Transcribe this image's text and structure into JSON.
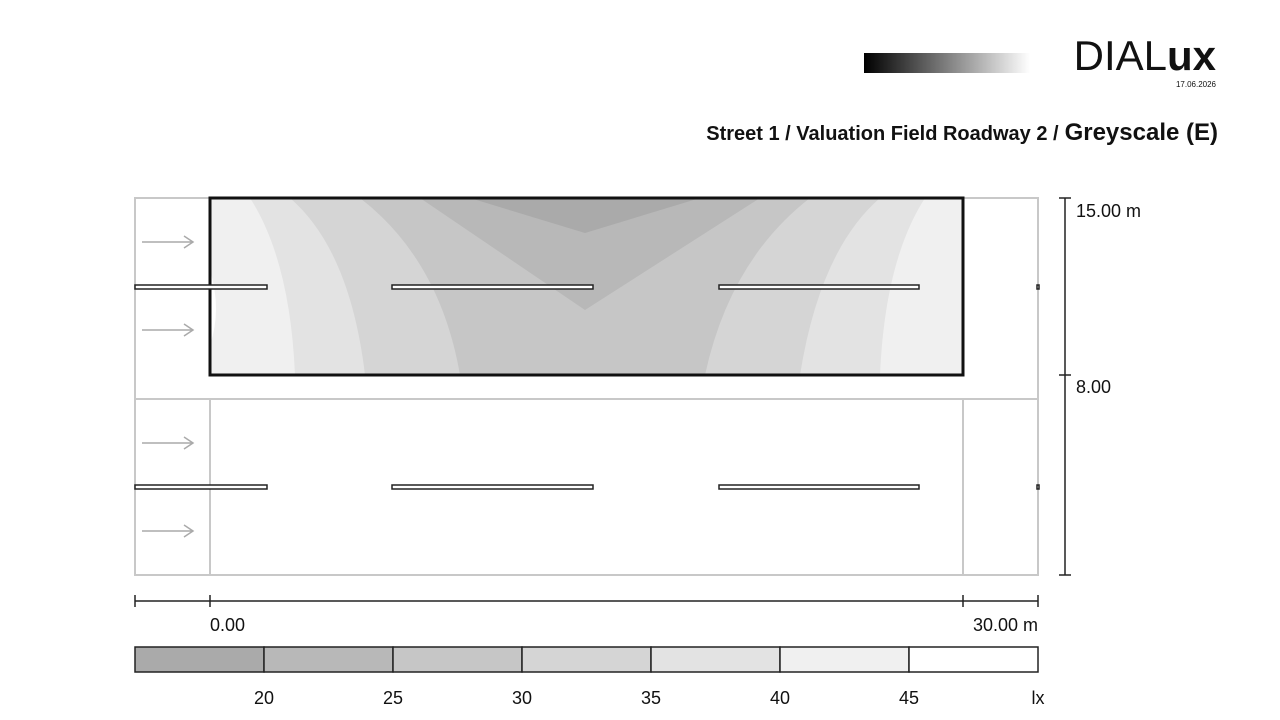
{
  "header": {
    "logo": {
      "light": "DIAL",
      "bold": "ux"
    },
    "date": "17.06.2026",
    "title": {
      "path": "Street 1 / Valuation Field Roadway 2 /",
      "name": "Greyscale (E)"
    }
  },
  "dimensions": {
    "height_top": "15.00 m",
    "height_mid": "8.00",
    "width_start": "0.00",
    "width_end": "30.00 m"
  },
  "legend": {
    "values": [
      20,
      25,
      30,
      35,
      40,
      45
    ],
    "unit": "lx",
    "colors": [
      "#aaaaaa",
      "#b8b8b8",
      "#c6c6c6",
      "#d5d5d5",
      "#e3e3e3",
      "#f0f0f0",
      "#ffffff"
    ]
  }
}
